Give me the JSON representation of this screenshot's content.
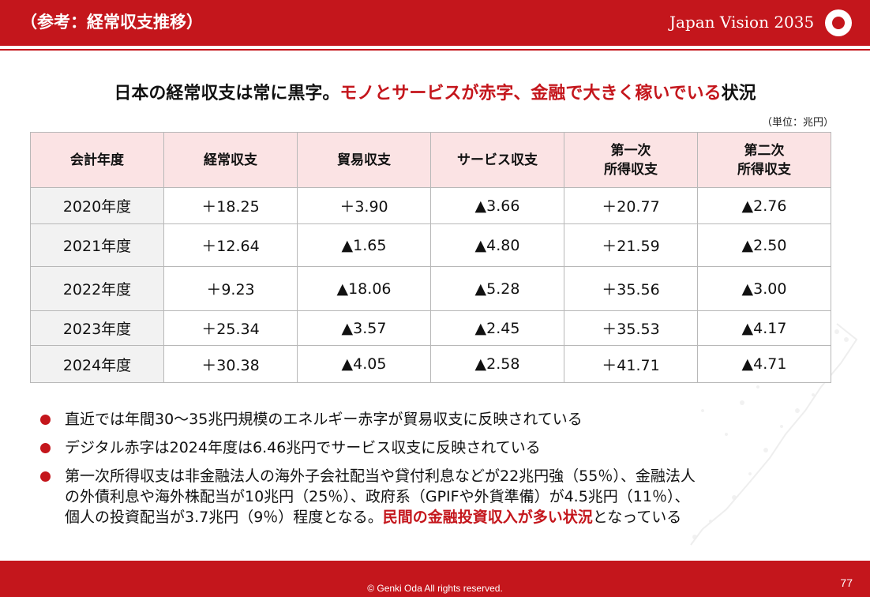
{
  "header": {
    "section_title": "（参考：経常収支推移）",
    "brand": "Japan Vision 2035"
  },
  "headline": {
    "part1": "日本の経常収支は常に黒字。",
    "highlight": "モノとサービスが赤字、金融で大きく稼いでいる",
    "part2": "状況"
  },
  "unit_note": "（単位：兆円）",
  "table": {
    "headers": [
      [
        "会計年度"
      ],
      [
        "経常収支"
      ],
      [
        "貿易収支"
      ],
      [
        "サービス収支"
      ],
      [
        "第一次",
        "所得収支"
      ],
      [
        "第二次",
        "所得収支"
      ]
    ],
    "rows": [
      [
        "2020年度",
        "＋18.25",
        "＋3.90",
        "▲3.66",
        "＋20.77",
        "▲2.76"
      ],
      [
        "2021年度",
        "＋12.64",
        "▲1.65",
        "▲4.80",
        "＋21.59",
        "▲2.50"
      ],
      [
        "2022年度",
        "＋9.23",
        "▲18.06",
        "▲5.28",
        "＋35.56",
        "▲3.00"
      ],
      [
        "2023年度",
        "＋25.34",
        "▲3.57",
        "▲2.45",
        "＋35.53",
        "▲4.17"
      ],
      [
        "2024年度",
        "＋30.38",
        "▲4.05",
        "▲2.58",
        "＋41.71",
        "▲4.71"
      ]
    ]
  },
  "bullets": [
    {
      "lines": [
        "直近では年間30〜35兆円規模のエネルギー赤字が貿易収支に反映されている"
      ]
    },
    {
      "lines": [
        "デジタル赤字は2024年度は6.46兆円でサービス収支に反映されている"
      ]
    },
    {
      "lines": [
        "第一次所得収支は非金融法人の海外子会社配当や貸付利息などが22兆円強（55％）、金融法人",
        "の外債利息や海外株配当が10兆円（25％）、政府系（GPIFや外貨準備）が4.5兆円（11％）、"
      ],
      "last_line_before": "個人の投資配当が3.7兆円（9％）程度となる。",
      "last_line_highlight": "民間の金融投資収入が多い状況",
      "last_line_after": "となっている"
    }
  ],
  "footer": {
    "copyright": "© Genki Oda All rights reserved.",
    "page_number": "77"
  },
  "colors": {
    "accent": "#c4161c",
    "header_cell": "#fbe3e4",
    "year_cell": "#f2f2f2"
  }
}
